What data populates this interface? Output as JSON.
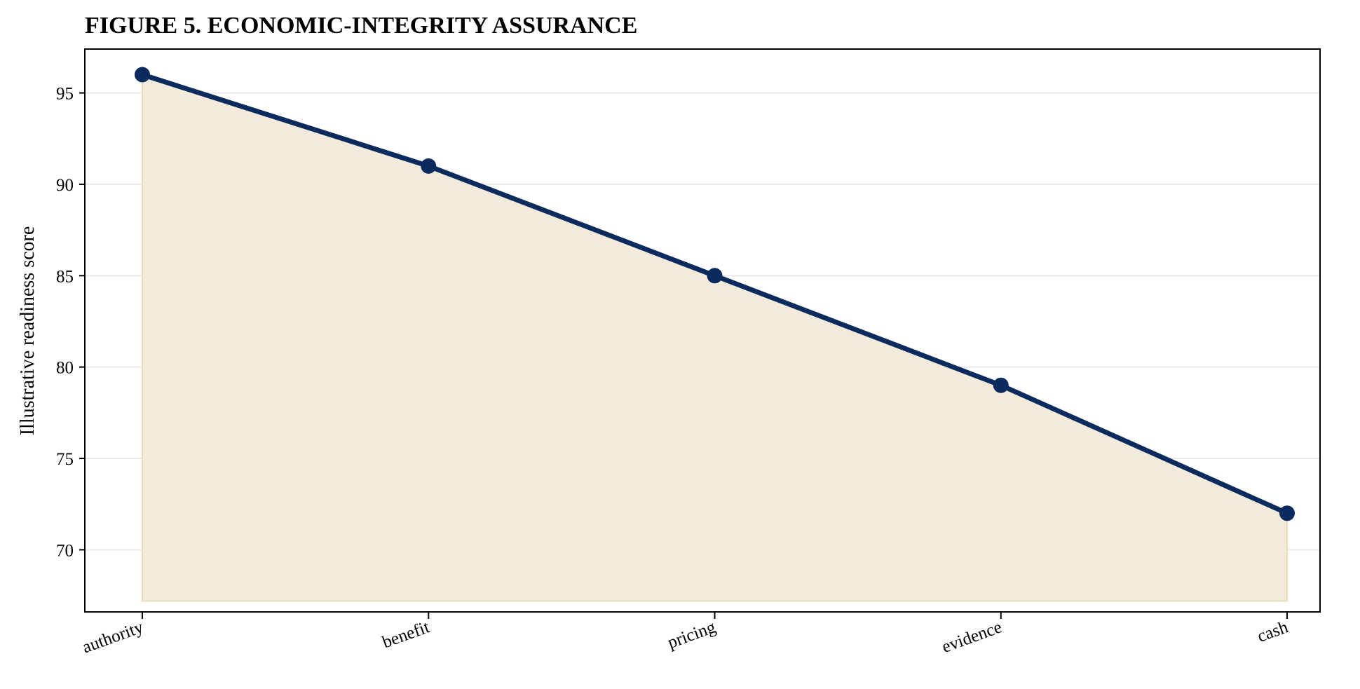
{
  "chart_data": {
    "type": "line",
    "title": "FIGURE 5. ECONOMIC-INTEGRITY ASSURANCE",
    "xlabel": "",
    "ylabel": "Illustrative readiness score",
    "categories": [
      "authority",
      "benefit",
      "pricing",
      "evidence",
      "cash"
    ],
    "series": [
      {
        "values": [
          96,
          91,
          85,
          79,
          72
        ]
      }
    ],
    "ylim": [
      66.6,
      97.4
    ],
    "yticks": [
      70,
      75,
      80,
      85,
      90,
      95
    ],
    "fill_baseline": 67.2,
    "grid": "horizontal",
    "legend": "none",
    "colors": {
      "line": "#0b2a5e",
      "fill": "#f2ebdb",
      "fill_edge": "#e9dcb8",
      "grid": "#ebebeb",
      "axis": "#000000"
    }
  }
}
